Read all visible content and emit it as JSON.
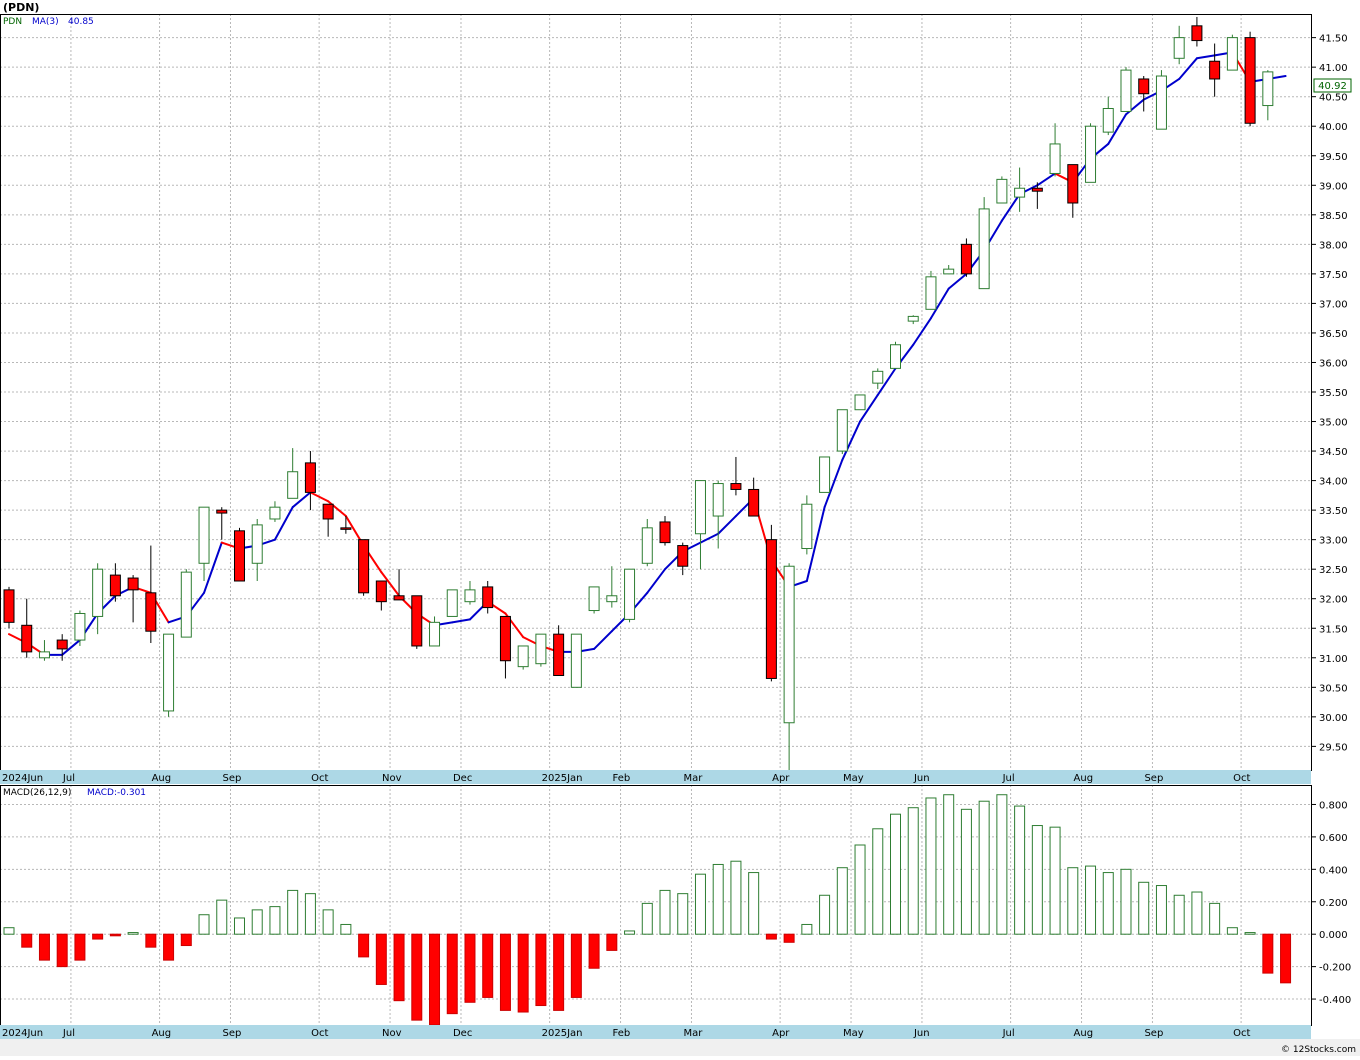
{
  "header": {
    "title": "(PDN)"
  },
  "price_panel": {
    "legend_symbol": "PDN",
    "legend_ma": "MA(3)",
    "legend_ma_value": "40.85",
    "last_price_label": "40.92"
  },
  "macd_panel": {
    "legend_name": "MACD(26,12,9)",
    "legend_value": "MACD:-0.301"
  },
  "footer": {
    "copyright": "© 12Stocks.com"
  },
  "colors": {
    "up": "#2e7d32",
    "down": "#ff0000",
    "ma_rising": "#0000cc",
    "ma_falling": "#ff0000",
    "axis_bar": "#add8e6",
    "grid": "#b8b8b8"
  },
  "chart_data": [
    {
      "type": "candlestick",
      "timeframe": "weekly",
      "price_ylim": [
        29.1,
        41.9
      ],
      "yticks": [
        "41.50",
        "41.00",
        "40.50",
        "40.00",
        "39.50",
        "39.00",
        "38.50",
        "38.00",
        "37.50",
        "37.00",
        "36.50",
        "36.00",
        "35.50",
        "35.00",
        "34.50",
        "34.00",
        "33.50",
        "33.00",
        "32.50",
        "32.00",
        "31.50",
        "31.00",
        "30.50",
        "30.00",
        "29.50"
      ],
      "month_labels": [
        {
          "label": "2024Jun",
          "week": 0
        },
        {
          "label": "Jul",
          "week": 4
        },
        {
          "label": "Aug",
          "week": 9
        },
        {
          "label": "Sep",
          "week": 13
        },
        {
          "label": "Oct",
          "week": 18
        },
        {
          "label": "Nov",
          "week": 22
        },
        {
          "label": "Dec",
          "week": 26
        },
        {
          "label": "2025Jan",
          "week": 31
        },
        {
          "label": "Feb",
          "week": 35
        },
        {
          "label": "Mar",
          "week": 39
        },
        {
          "label": "Apr",
          "week": 44
        },
        {
          "label": "May",
          "week": 48
        },
        {
          "label": "Jun",
          "week": 52
        },
        {
          "label": "Jul",
          "week": 57
        },
        {
          "label": "Aug",
          "week": 61
        },
        {
          "label": "Sep",
          "week": 65
        },
        {
          "label": "Oct",
          "week": 70
        }
      ],
      "candles": [
        {
          "o": 32.15,
          "h": 32.2,
          "l": 31.5,
          "c": 31.6
        },
        {
          "o": 31.55,
          "h": 32.0,
          "l": 31.0,
          "c": 31.1
        },
        {
          "o": 31.0,
          "h": 31.3,
          "l": 30.95,
          "c": 31.1
        },
        {
          "o": 31.3,
          "h": 31.4,
          "l": 30.95,
          "c": 31.15
        },
        {
          "o": 31.3,
          "h": 31.8,
          "l": 31.2,
          "c": 31.75
        },
        {
          "o": 31.7,
          "h": 32.6,
          "l": 31.4,
          "c": 32.5
        },
        {
          "o": 32.4,
          "h": 32.6,
          "l": 31.95,
          "c": 32.05
        },
        {
          "o": 32.35,
          "h": 32.4,
          "l": 31.6,
          "c": 32.15
        },
        {
          "o": 32.1,
          "h": 32.9,
          "l": 31.25,
          "c": 31.45
        },
        {
          "o": 30.1,
          "h": 31.4,
          "l": 30.0,
          "c": 31.4
        },
        {
          "o": 31.35,
          "h": 32.5,
          "l": 31.35,
          "c": 32.45
        },
        {
          "o": 32.6,
          "h": 33.55,
          "l": 32.3,
          "c": 33.55
        },
        {
          "o": 33.5,
          "h": 33.55,
          "l": 33.0,
          "c": 33.45
        },
        {
          "o": 33.15,
          "h": 33.2,
          "l": 32.3,
          "c": 32.3
        },
        {
          "o": 32.6,
          "h": 33.35,
          "l": 32.3,
          "c": 33.25
        },
        {
          "o": 33.35,
          "h": 33.65,
          "l": 33.3,
          "c": 33.55
        },
        {
          "o": 33.7,
          "h": 34.55,
          "l": 33.7,
          "c": 34.15
        },
        {
          "o": 34.3,
          "h": 34.5,
          "l": 33.5,
          "c": 33.8
        },
        {
          "o": 33.6,
          "h": 33.6,
          "l": 33.05,
          "c": 33.35
        },
        {
          "o": 33.2,
          "h": 33.4,
          "l": 33.1,
          "c": 33.18
        },
        {
          "o": 33.0,
          "h": 33.0,
          "l": 32.05,
          "c": 32.1
        },
        {
          "o": 32.3,
          "h": 32.3,
          "l": 31.8,
          "c": 31.95
        },
        {
          "o": 32.05,
          "h": 32.5,
          "l": 32.0,
          "c": 31.98
        },
        {
          "o": 32.05,
          "h": 32.05,
          "l": 31.15,
          "c": 31.2
        },
        {
          "o": 31.2,
          "h": 31.7,
          "l": 31.2,
          "c": 31.6
        },
        {
          "o": 31.7,
          "h": 32.15,
          "l": 31.7,
          "c": 32.15
        },
        {
          "o": 31.95,
          "h": 32.3,
          "l": 31.9,
          "c": 32.15
        },
        {
          "o": 32.2,
          "h": 32.3,
          "l": 31.75,
          "c": 31.85
        },
        {
          "o": 31.7,
          "h": 31.7,
          "l": 30.65,
          "c": 30.95
        },
        {
          "o": 30.85,
          "h": 31.2,
          "l": 30.8,
          "c": 31.2
        },
        {
          "o": 30.9,
          "h": 31.4,
          "l": 30.85,
          "c": 31.4
        },
        {
          "o": 31.4,
          "h": 31.55,
          "l": 30.7,
          "c": 30.7
        },
        {
          "o": 30.5,
          "h": 31.4,
          "l": 30.5,
          "c": 31.4
        },
        {
          "o": 31.8,
          "h": 32.2,
          "l": 31.75,
          "c": 32.2
        },
        {
          "o": 31.95,
          "h": 32.55,
          "l": 31.85,
          "c": 32.05
        },
        {
          "o": 31.65,
          "h": 32.5,
          "l": 31.6,
          "c": 32.5
        },
        {
          "o": 32.6,
          "h": 33.35,
          "l": 32.55,
          "c": 33.2
        },
        {
          "o": 33.3,
          "h": 33.4,
          "l": 32.9,
          "c": 32.95
        },
        {
          "o": 32.9,
          "h": 32.95,
          "l": 32.4,
          "c": 32.55
        },
        {
          "o": 33.1,
          "h": 34.0,
          "l": 32.5,
          "c": 34.0
        },
        {
          "o": 33.4,
          "h": 34.0,
          "l": 32.85,
          "c": 33.95
        },
        {
          "o": 33.95,
          "h": 34.4,
          "l": 33.75,
          "c": 33.85
        },
        {
          "o": 33.85,
          "h": 34.05,
          "l": 33.4,
          "c": 33.4
        },
        {
          "o": 33.0,
          "h": 33.25,
          "l": 30.6,
          "c": 30.65
        },
        {
          "o": 29.9,
          "h": 32.6,
          "l": 29.1,
          "c": 32.55
        },
        {
          "o": 32.85,
          "h": 33.75,
          "l": 32.75,
          "c": 33.6
        },
        {
          "o": 33.8,
          "h": 34.4,
          "l": 33.8,
          "c": 34.4
        },
        {
          "o": 34.5,
          "h": 35.2,
          "l": 34.45,
          "c": 35.2
        },
        {
          "o": 35.2,
          "h": 35.45,
          "l": 35.2,
          "c": 35.45
        },
        {
          "o": 35.65,
          "h": 35.9,
          "l": 35.55,
          "c": 35.85
        },
        {
          "o": 35.9,
          "h": 36.35,
          "l": 35.9,
          "c": 36.3
        },
        {
          "o": 36.7,
          "h": 36.8,
          "l": 36.65,
          "c": 36.78
        },
        {
          "o": 36.9,
          "h": 37.55,
          "l": 36.9,
          "c": 37.45
        },
        {
          "o": 37.5,
          "h": 37.65,
          "l": 37.5,
          "c": 37.58
        },
        {
          "o": 38.0,
          "h": 38.1,
          "l": 37.45,
          "c": 37.5
        },
        {
          "o": 37.25,
          "h": 38.8,
          "l": 37.25,
          "c": 38.6
        },
        {
          "o": 38.7,
          "h": 39.15,
          "l": 38.7,
          "c": 39.1
        },
        {
          "o": 38.8,
          "h": 39.3,
          "l": 38.55,
          "c": 38.95
        },
        {
          "o": 38.95,
          "h": 39.05,
          "l": 38.6,
          "c": 38.9
        },
        {
          "o": 39.2,
          "h": 40.05,
          "l": 39.15,
          "c": 39.7
        },
        {
          "o": 39.35,
          "h": 39.35,
          "l": 38.45,
          "c": 38.7
        },
        {
          "o": 39.05,
          "h": 40.05,
          "l": 39.05,
          "c": 40.0
        },
        {
          "o": 39.9,
          "h": 40.5,
          "l": 39.85,
          "c": 40.3
        },
        {
          "o": 40.25,
          "h": 41.0,
          "l": 40.25,
          "c": 40.95
        },
        {
          "o": 40.8,
          "h": 40.85,
          "l": 40.25,
          "c": 40.55
        },
        {
          "o": 39.95,
          "h": 40.95,
          "l": 39.95,
          "c": 40.85
        },
        {
          "o": 41.15,
          "h": 41.7,
          "l": 41.05,
          "c": 41.5
        },
        {
          "o": 41.7,
          "h": 41.85,
          "l": 41.35,
          "c": 41.45
        },
        {
          "o": 41.1,
          "h": 41.4,
          "l": 40.5,
          "c": 40.8
        },
        {
          "o": 40.95,
          "h": 41.55,
          "l": 40.95,
          "c": 41.5
        },
        {
          "o": 41.5,
          "h": 41.6,
          "l": 40.0,
          "c": 40.05
        },
        {
          "o": 40.35,
          "h": 40.95,
          "l": 40.1,
          "c": 40.92
        }
      ],
      "ma3": [
        31.4,
        31.25,
        31.05,
        31.05,
        31.3,
        31.75,
        32.05,
        32.2,
        32.1,
        31.6,
        31.7,
        32.1,
        32.95,
        32.85,
        32.9,
        33.0,
        33.55,
        33.8,
        33.65,
        33.4,
        32.9,
        32.45,
        32.05,
        31.75,
        31.55,
        31.6,
        31.65,
        31.95,
        31.75,
        31.35,
        31.2,
        31.1,
        31.1,
        31.15,
        31.45,
        31.75,
        32.1,
        32.5,
        32.8,
        32.95,
        33.1,
        33.4,
        33.7,
        32.65,
        32.2,
        32.3,
        33.55,
        34.35,
        35.0,
        35.45,
        35.9,
        36.3,
        36.75,
        37.25,
        37.5,
        37.9,
        38.4,
        38.85,
        39.0,
        39.2,
        39.05,
        39.45,
        39.7,
        40.2,
        40.45,
        40.6,
        40.8,
        41.15,
        41.2,
        41.25,
        40.75,
        40.8,
        40.85
      ],
      "macd_ylim": [
        -0.56,
        0.92
      ],
      "macd_yticks": [
        "0.800",
        "0.600",
        "0.400",
        "0.200",
        "0.000",
        "-0.200",
        "-0.400"
      ],
      "macd_hist": [
        0.04,
        -0.08,
        -0.16,
        -0.2,
        -0.16,
        -0.03,
        -0.01,
        0.01,
        -0.08,
        -0.16,
        -0.07,
        0.12,
        0.21,
        0.1,
        0.15,
        0.17,
        0.27,
        0.25,
        0.15,
        0.06,
        -0.14,
        -0.31,
        -0.41,
        -0.53,
        -0.56,
        -0.49,
        -0.42,
        -0.39,
        -0.47,
        -0.48,
        -0.44,
        -0.47,
        -0.39,
        -0.21,
        -0.1,
        0.02,
        0.19,
        0.27,
        0.25,
        0.37,
        0.43,
        0.45,
        0.38,
        -0.03,
        -0.05,
        0.06,
        0.24,
        0.41,
        0.55,
        0.65,
        0.74,
        0.78,
        0.84,
        0.86,
        0.77,
        0.82,
        0.86,
        0.79,
        0.67,
        0.66,
        0.41,
        0.42,
        0.38,
        0.4,
        0.32,
        0.3,
        0.24,
        0.26,
        0.19,
        0.04,
        0.01,
        -0.24,
        -0.3
      ]
    }
  ]
}
